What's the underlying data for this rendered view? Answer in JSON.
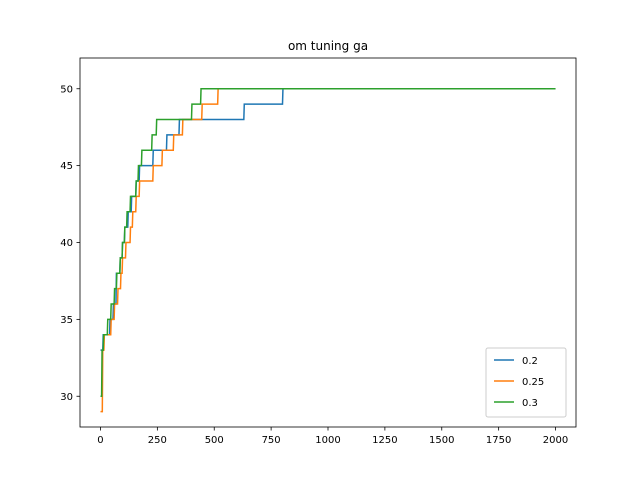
{
  "chart_data": {
    "type": "line",
    "title": "om tuning ga",
    "xlabel": "",
    "ylabel": "",
    "xlim": [
      -90,
      2090
    ],
    "ylim": [
      28,
      52
    ],
    "x_ticks": [
      0,
      250,
      500,
      750,
      1000,
      1250,
      1500,
      1750,
      2000
    ],
    "y_ticks": [
      30,
      35,
      40,
      45,
      50
    ],
    "grid": false,
    "legend_position": "lower-right",
    "series": [
      {
        "name": "0.2",
        "color": "#1f77b4",
        "points": [
          [
            0,
            33
          ],
          [
            10,
            33
          ],
          [
            12,
            34
          ],
          [
            40,
            34
          ],
          [
            42,
            35
          ],
          [
            55,
            35
          ],
          [
            57,
            36
          ],
          [
            68,
            36
          ],
          [
            70,
            38
          ],
          [
            85,
            38
          ],
          [
            87,
            39
          ],
          [
            95,
            39
          ],
          [
            97,
            40
          ],
          [
            105,
            40
          ],
          [
            107,
            41
          ],
          [
            120,
            41
          ],
          [
            122,
            42
          ],
          [
            135,
            42
          ],
          [
            137,
            43
          ],
          [
            155,
            43
          ],
          [
            157,
            44
          ],
          [
            170,
            44
          ],
          [
            172,
            45
          ],
          [
            230,
            45
          ],
          [
            232,
            46
          ],
          [
            290,
            46
          ],
          [
            292,
            47
          ],
          [
            345,
            47
          ],
          [
            347,
            48
          ],
          [
            630,
            48
          ],
          [
            632,
            49
          ],
          [
            800,
            49
          ],
          [
            802,
            50
          ],
          [
            2000,
            50
          ]
        ]
      },
      {
        "name": "0.25",
        "color": "#ff7f0e",
        "points": [
          [
            0,
            29
          ],
          [
            8,
            29
          ],
          [
            10,
            33
          ],
          [
            15,
            33
          ],
          [
            17,
            34
          ],
          [
            45,
            34
          ],
          [
            47,
            35
          ],
          [
            60,
            35
          ],
          [
            62,
            36
          ],
          [
            75,
            36
          ],
          [
            77,
            37
          ],
          [
            88,
            37
          ],
          [
            90,
            38
          ],
          [
            95,
            38
          ],
          [
            97,
            39
          ],
          [
            110,
            39
          ],
          [
            112,
            40
          ],
          [
            130,
            40
          ],
          [
            132,
            41
          ],
          [
            140,
            41
          ],
          [
            142,
            42
          ],
          [
            155,
            42
          ],
          [
            157,
            43
          ],
          [
            170,
            43
          ],
          [
            172,
            44
          ],
          [
            230,
            44
          ],
          [
            232,
            45
          ],
          [
            270,
            45
          ],
          [
            272,
            46
          ],
          [
            320,
            46
          ],
          [
            322,
            47
          ],
          [
            360,
            47
          ],
          [
            362,
            48
          ],
          [
            445,
            48
          ],
          [
            447,
            49
          ],
          [
            515,
            49
          ],
          [
            517,
            50
          ],
          [
            2000,
            50
          ]
        ]
      },
      {
        "name": "0.3",
        "color": "#2ca02c",
        "points": [
          [
            0,
            30
          ],
          [
            5,
            30
          ],
          [
            7,
            33
          ],
          [
            12,
            33
          ],
          [
            14,
            34
          ],
          [
            30,
            34
          ],
          [
            32,
            35
          ],
          [
            45,
            35
          ],
          [
            47,
            36
          ],
          [
            60,
            36
          ],
          [
            62,
            37
          ],
          [
            70,
            37
          ],
          [
            72,
            38
          ],
          [
            85,
            38
          ],
          [
            87,
            39
          ],
          [
            95,
            39
          ],
          [
            97,
            40
          ],
          [
            105,
            40
          ],
          [
            107,
            41
          ],
          [
            115,
            41
          ],
          [
            117,
            42
          ],
          [
            130,
            42
          ],
          [
            132,
            43
          ],
          [
            155,
            43
          ],
          [
            157,
            44
          ],
          [
            165,
            44
          ],
          [
            167,
            45
          ],
          [
            180,
            45
          ],
          [
            182,
            46
          ],
          [
            225,
            46
          ],
          [
            227,
            47
          ],
          [
            245,
            47
          ],
          [
            247,
            48
          ],
          [
            400,
            48
          ],
          [
            402,
            49
          ],
          [
            440,
            49
          ],
          [
            442,
            50
          ],
          [
            2000,
            50
          ]
        ]
      }
    ]
  }
}
